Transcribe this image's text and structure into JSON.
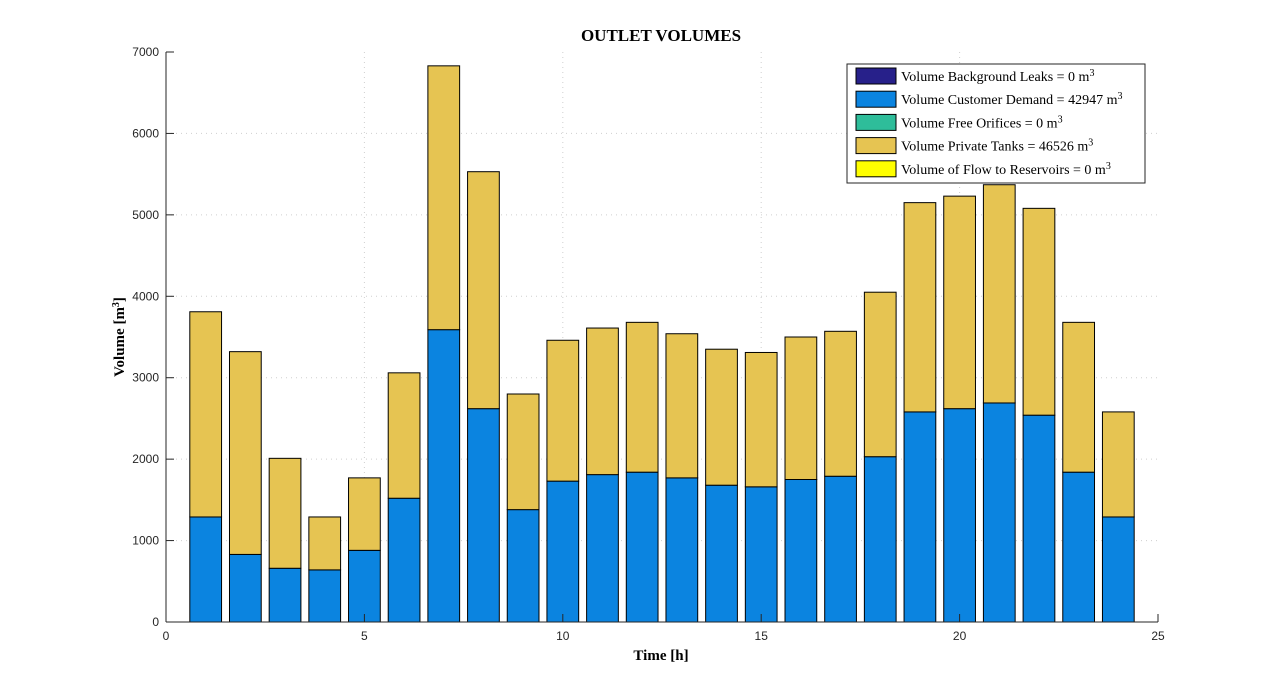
{
  "chart_data": {
    "type": "bar",
    "stacked": true,
    "title": "OUTLET VOLUMES",
    "xlabel": "Time [h]",
    "ylabel": {
      "text": "Volume [m",
      "superscript": "3",
      "suffix": "]"
    },
    "xlim": [
      0,
      25
    ],
    "ylim": [
      0,
      7000
    ],
    "xticks": [
      0,
      5,
      10,
      15,
      20,
      25
    ],
    "yticks": [
      0,
      1000,
      2000,
      3000,
      4000,
      5000,
      6000,
      7000
    ],
    "grid": true,
    "legend_placement": "top-right",
    "x": [
      1,
      2,
      3,
      4,
      5,
      6,
      7,
      8,
      9,
      10,
      11,
      12,
      13,
      14,
      15,
      16,
      17,
      18,
      19,
      20,
      21,
      22,
      23,
      24
    ],
    "series": [
      {
        "name": "Volume Background Leaks = 0 m",
        "unit_superscript": "3",
        "color": "#27208a",
        "values": [
          0,
          0,
          0,
          0,
          0,
          0,
          0,
          0,
          0,
          0,
          0,
          0,
          0,
          0,
          0,
          0,
          0,
          0,
          0,
          0,
          0,
          0,
          0,
          0
        ]
      },
      {
        "name": "Volume Customer Demand = 42947 m",
        "unit_superscript": "3",
        "color": "#0b84e0",
        "values": [
          1290,
          830,
          660,
          640,
          880,
          1520,
          3590,
          2620,
          1380,
          1730,
          1810,
          1840,
          1770,
          1680,
          1660,
          1750,
          1790,
          2030,
          2580,
          2620,
          2690,
          2540,
          1840,
          1290
        ]
      },
      {
        "name": "Volume Free Orifices = 0 m",
        "unit_superscript": "3",
        "color": "#2ebd9a",
        "values": [
          0,
          0,
          0,
          0,
          0,
          0,
          0,
          0,
          0,
          0,
          0,
          0,
          0,
          0,
          0,
          0,
          0,
          0,
          0,
          0,
          0,
          0,
          0,
          0
        ]
      },
      {
        "name": "Volume Private Tanks = 46526 m",
        "unit_superscript": "3",
        "color": "#e6c452",
        "values": [
          2520,
          2490,
          1350,
          650,
          890,
          1540,
          3240,
          2910,
          1420,
          1730,
          1800,
          1840,
          1770,
          1670,
          1650,
          1750,
          1780,
          2020,
          2570,
          2610,
          2680,
          2540,
          1840,
          1290
        ]
      },
      {
        "name": "Volume of Flow to Reservoirs = 0 m",
        "unit_superscript": "3",
        "color": "#ffff00",
        "values": [
          0,
          0,
          0,
          0,
          0,
          0,
          0,
          0,
          0,
          0,
          0,
          0,
          0,
          0,
          0,
          0,
          0,
          0,
          0,
          0,
          0,
          0,
          0,
          0
        ]
      }
    ]
  }
}
